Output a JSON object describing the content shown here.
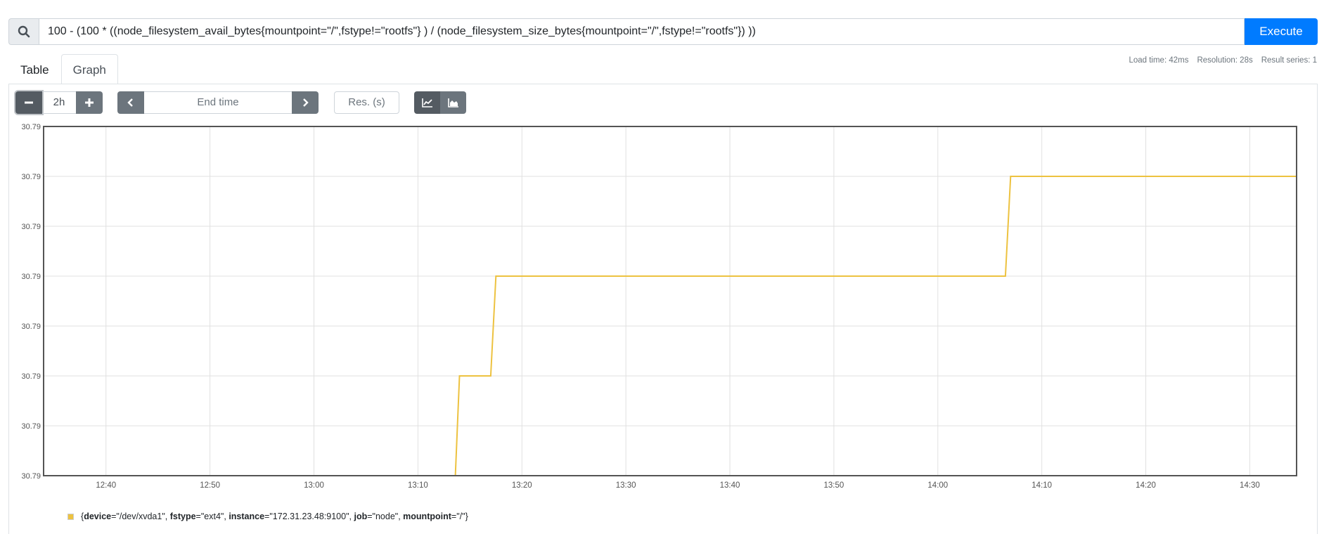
{
  "expression": {
    "value": "100 - (100 * ((node_filesystem_avail_bytes{mountpoint=\"/\",fstype!=\"rootfs\"} )  / (node_filesystem_size_bytes{mountpoint=\"/\",fstype!=\"rootfs\"}) ))",
    "execute_label": "Execute"
  },
  "tabs": [
    {
      "label": "Table"
    },
    {
      "label": "Graph"
    }
  ],
  "stats": {
    "load_time": "Load time: 42ms",
    "resolution": "Resolution: 28s",
    "result_series": "Result series: 1"
  },
  "controls": {
    "range": "2h",
    "end_time_placeholder": "End time",
    "res_placeholder": "Res. (s)"
  },
  "colors": {
    "series": "#edc240",
    "primary": "#007bff"
  },
  "chart_data": {
    "type": "line",
    "title": "",
    "xlabel": "",
    "ylabel": "",
    "x_ticks": [
      "12:40",
      "12:50",
      "13:00",
      "13:10",
      "13:20",
      "13:30",
      "13:40",
      "13:50",
      "14:00",
      "14:10",
      "14:20",
      "14:30"
    ],
    "y_ticks": [
      "30.79",
      "30.79",
      "30.79",
      "30.79",
      "30.79",
      "30.79",
      "30.79",
      "30.79"
    ],
    "grid": true,
    "series": [
      {
        "name": "{device=\"/dev/xvda1\", fstype=\"ext4\", instance=\"172.31.23.48:9100\", job=\"node\", mountpoint=\"/\"}",
        "x": [
          "12:34",
          "13:13.6",
          "13:14",
          "13:17",
          "13:17.5",
          "14:06.5",
          "14:07",
          "14:34.5"
        ],
        "y": [
          0.0,
          0.0,
          2.0,
          2.0,
          4.0,
          4.0,
          6.0,
          6.0
        ],
        "y_note": "relative level in units of the ~equal-spaced y gridlines (all labels read 30.79)"
      }
    ],
    "legend": {
      "placement": "bottom-left",
      "labels": [
        {
          "key": "device",
          "value": "\"/dev/xvda1\""
        },
        {
          "key": "fstype",
          "value": "\"ext4\""
        },
        {
          "key": "instance",
          "value": "\"172.31.23.48:9100\""
        },
        {
          "key": "job",
          "value": "\"node\""
        },
        {
          "key": "mountpoint",
          "value": "\"/\""
        }
      ]
    }
  }
}
